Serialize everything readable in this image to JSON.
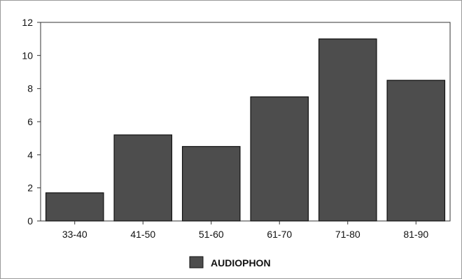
{
  "chart_data": {
    "type": "bar",
    "categories": [
      "33-40",
      "41-50",
      "51-60",
      "61-70",
      "71-80",
      "81-90"
    ],
    "series": [
      {
        "name": "AUDIOPHON",
        "values": [
          1.7,
          5.2,
          4.5,
          7.5,
          11.0,
          8.5
        ]
      }
    ],
    "ylim": [
      0,
      12
    ],
    "yticks": [
      0,
      2,
      4,
      6,
      8,
      10,
      12
    ],
    "grid": false,
    "legend_position": "bottom-center",
    "colors": {
      "bar": "#4d4d4d",
      "bar_edge": "#111111",
      "axis": "#333333"
    }
  }
}
